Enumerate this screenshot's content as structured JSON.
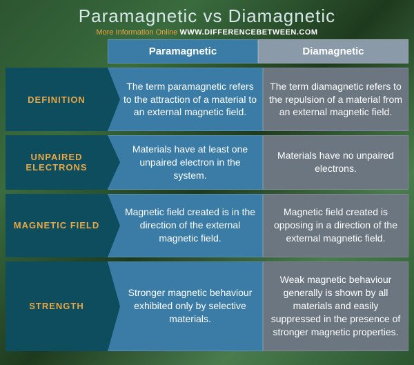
{
  "header": {
    "title": "Paramagnetic vs Diamagnetic",
    "subtitle_prefix": "More Information  Online",
    "url": "WWW.DIFFERENCEBETWEEN.COM"
  },
  "columns": {
    "col1": "Paramagnetic",
    "col2": "Diamagnetic"
  },
  "rows": [
    {
      "label": "DEFINITION",
      "col1": "The term paramagnetic refers to the attraction of a material to an external magnetic field.",
      "col2": "The term diamagnetic refers to the repulsion of a material from an external magnetic field."
    },
    {
      "label": "UNPAIRED ELECTRONS",
      "col1": "Materials have at least one unpaired electron in the system.",
      "col2": "Materials have no unpaired electrons."
    },
    {
      "label": "MAGNETIC FIELD",
      "col1": "Magnetic field created is in the direction of the external magnetic field.",
      "col2": "Magnetic field created is opposing in a direction of the external magnetic field."
    },
    {
      "label": "STRENGTH",
      "col1": "Stronger magnetic behaviour exhibited only by selective materials.",
      "col2": "Weak magnetic behaviour generally is shown by all materials and easily suppressed in the presence of stronger magnetic properties."
    }
  ],
  "styles": {
    "title_color": "#d8e8e8",
    "subtitle_color": "#e8a848",
    "url_color": "#ffffff",
    "label_bg": "#0d4d5e",
    "label_text": "#e8a848",
    "col1_bg": "#3a7ca5",
    "col2_header_bg": "#8a9aa8",
    "col2_cell_bg": "#6b7680",
    "cell_text": "#ffffff",
    "title_fontsize": 26,
    "cell_fontsize": 14,
    "label_fontsize": 13
  }
}
